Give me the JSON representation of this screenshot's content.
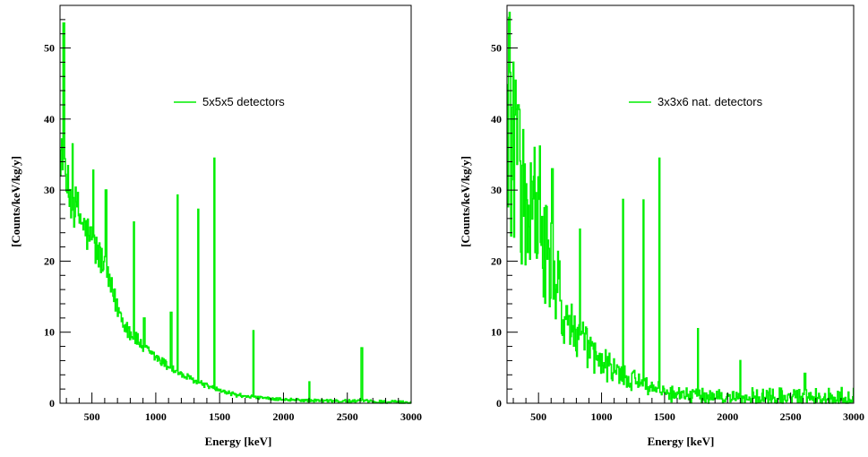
{
  "colors": {
    "series": "#00ee00",
    "axis": "#000000",
    "background": "#ffffff"
  },
  "chart_data": [
    {
      "type": "line",
      "title": "",
      "xlabel": "Energy [keV]",
      "ylabel": "[Counts/keV/kg/y]",
      "xlim": [
        250,
        3000
      ],
      "ylim": [
        0,
        56
      ],
      "xticks": [
        500,
        1000,
        1500,
        2000,
        2500,
        3000
      ],
      "xtick_labels": [
        "500",
        "1000",
        "1500",
        "2000",
        "2500",
        "3000"
      ],
      "yticks": [
        0,
        10,
        20,
        30,
        40,
        50
      ],
      "ytick_labels": [
        "0",
        "10",
        "20",
        "30",
        "40",
        "50"
      ],
      "grid": false,
      "legend_position": "top-right",
      "series": [
        {
          "name": "5x5x5 detectors",
          "x": [
            250,
            270,
            290,
            310,
            330,
            350,
            370,
            400,
            430,
            460,
            490,
            520,
            550,
            580,
            610,
            650,
            700,
            750,
            800,
            850,
            900,
            950,
            1000,
            1100,
            1200,
            1300,
            1400,
            1500,
            1600,
            1700,
            1800,
            1900,
            2000,
            2200,
            2400,
            2600,
            2800,
            3000
          ],
          "y": [
            37,
            33,
            31,
            30,
            29,
            28.5,
            27.5,
            26.5,
            25,
            24,
            23,
            22,
            21,
            20,
            18,
            16,
            13.5,
            11.5,
            10,
            9,
            8,
            7,
            6.5,
            5.2,
            4,
            3.2,
            2.5,
            1.8,
            1.3,
            1.0,
            0.8,
            0.6,
            0.5,
            0.4,
            0.3,
            0.3,
            0.2,
            0.1
          ]
        }
      ],
      "peaks": [
        {
          "x": 280,
          "y": 53.5
        },
        {
          "x": 350,
          "y": 36.5
        },
        {
          "x": 510,
          "y": 32.8
        },
        {
          "x": 610,
          "y": 30
        },
        {
          "x": 830,
          "y": 25.5
        },
        {
          "x": 910,
          "y": 12
        },
        {
          "x": 1120,
          "y": 12.8
        },
        {
          "x": 1173,
          "y": 29.3
        },
        {
          "x": 1332,
          "y": 27.3
        },
        {
          "x": 1460,
          "y": 34.5
        },
        {
          "x": 1764,
          "y": 10.2
        },
        {
          "x": 2204,
          "y": 3
        },
        {
          "x": 2614,
          "y": 7.8
        }
      ]
    },
    {
      "type": "line",
      "title": "",
      "xlabel": "Energy [keV]",
      "ylabel": "[Counts/keV/kg/y]",
      "xlim": [
        250,
        3000
      ],
      "ylim": [
        0,
        56
      ],
      "xticks": [
        500,
        1000,
        1500,
        2000,
        2500,
        3000
      ],
      "xtick_labels": [
        "500",
        "1000",
        "1500",
        "2000",
        "2500",
        "3000"
      ],
      "yticks": [
        0,
        10,
        20,
        30,
        40,
        50
      ],
      "ytick_labels": [
        "0",
        "10",
        "20",
        "30",
        "40",
        "50"
      ],
      "grid": false,
      "legend_position": "top-right",
      "series": [
        {
          "name": "3x3x6 nat. detectors",
          "x": [
            250,
            270,
            290,
            310,
            330,
            350,
            370,
            400,
            430,
            460,
            490,
            520,
            550,
            580,
            610,
            650,
            700,
            750,
            800,
            850,
            900,
            950,
            1000,
            1100,
            1200,
            1300,
            1400,
            1500,
            1600,
            1700,
            1800,
            1900,
            2000,
            2200,
            2400,
            2600,
            2800,
            3000
          ],
          "y": [
            45,
            40,
            37,
            35,
            33,
            31,
            29,
            27.5,
            26,
            25,
            24,
            23,
            21,
            19.5,
            18,
            15.5,
            13,
            11,
            9.5,
            8.5,
            7.5,
            6.5,
            5.5,
            4.5,
            3.5,
            3,
            2.2,
            1.7,
            1.3,
            1.1,
            0.9,
            0.8,
            0.7,
            0.6,
            0.5,
            0.4,
            0.3,
            0.3
          ]
        }
      ],
      "peaks": [
        {
          "x": 270,
          "y": 55
        },
        {
          "x": 300,
          "y": 48
        },
        {
          "x": 340,
          "y": 42
        },
        {
          "x": 470,
          "y": 36
        },
        {
          "x": 510,
          "y": 36.2
        },
        {
          "x": 610,
          "y": 33
        },
        {
          "x": 830,
          "y": 24.5
        },
        {
          "x": 1173,
          "y": 28.7
        },
        {
          "x": 1332,
          "y": 28.6
        },
        {
          "x": 1460,
          "y": 34.5
        },
        {
          "x": 1764,
          "y": 10.5
        },
        {
          "x": 2100,
          "y": 6
        },
        {
          "x": 2614,
          "y": 4.2
        }
      ]
    }
  ]
}
